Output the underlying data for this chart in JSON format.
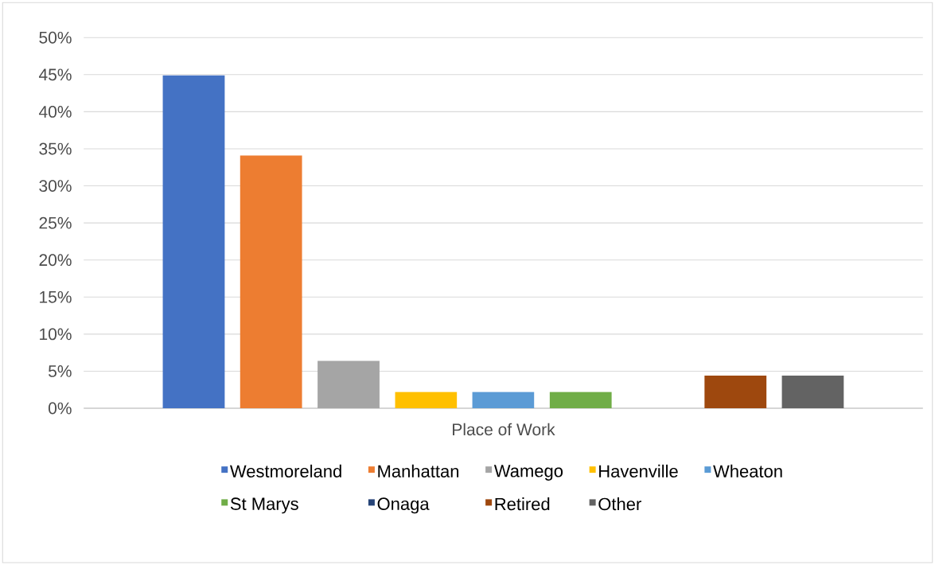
{
  "chart_data": {
    "type": "bar",
    "categories": [
      "Place of Work"
    ],
    "series": [
      {
        "name": "Westmoreland",
        "color": "#4472c4",
        "values": [
          44.9
        ]
      },
      {
        "name": "Manhattan",
        "color": "#ed7d31",
        "values": [
          34.1
        ]
      },
      {
        "name": "Wamego",
        "color": "#a5a5a5",
        "values": [
          6.4
        ]
      },
      {
        "name": "Havenville",
        "color": "#ffc000",
        "values": [
          2.2
        ]
      },
      {
        "name": "Wheaton",
        "color": "#5b9bd5",
        "values": [
          2.2
        ]
      },
      {
        "name": "St Marys",
        "color": "#70ad47",
        "values": [
          2.2
        ]
      },
      {
        "name": "Onaga",
        "color": "#264478",
        "values": [
          0
        ]
      },
      {
        "name": "Retired",
        "color": "#9e480e",
        "values": [
          4.4
        ]
      },
      {
        "name": "Other",
        "color": "#636363",
        "values": [
          4.4
        ]
      }
    ],
    "ylim": [
      0,
      50
    ],
    "yticks": [
      {
        "value": 0,
        "label": "0%"
      },
      {
        "value": 5,
        "label": "5%"
      },
      {
        "value": 10,
        "label": "10%"
      },
      {
        "value": 15,
        "label": "15%"
      },
      {
        "value": 20,
        "label": "20%"
      },
      {
        "value": 25,
        "label": "25%"
      },
      {
        "value": 30,
        "label": "30%"
      },
      {
        "value": 35,
        "label": "35%"
      },
      {
        "value": 40,
        "label": "40%"
      },
      {
        "value": 45,
        "label": "45%"
      },
      {
        "value": 50,
        "label": "50%"
      }
    ],
    "grid": "y",
    "legend": "bottom"
  }
}
